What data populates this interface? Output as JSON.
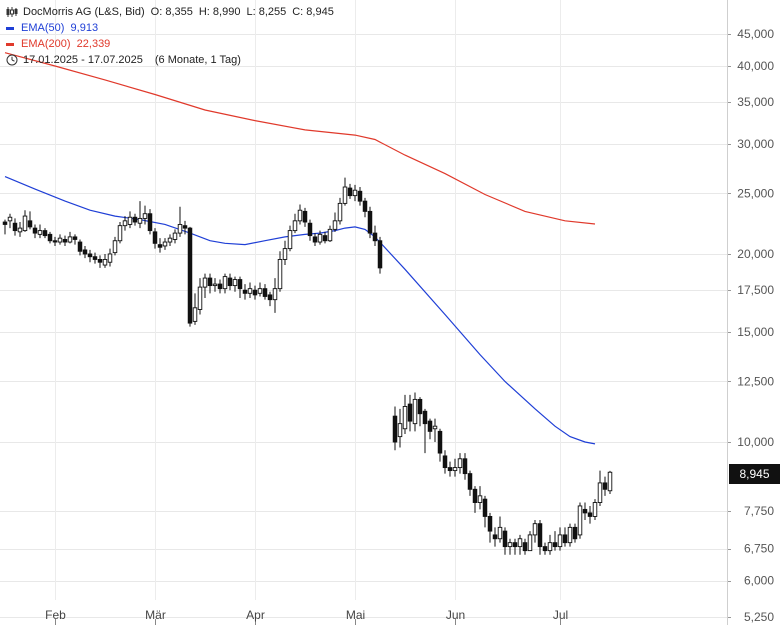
{
  "legend": {
    "instrument": "DocMorris AG (L&S, Bid)",
    "ohlc": {
      "o_label": "O:",
      "o": "8,355",
      "h_label": "H:",
      "h": "8,990",
      "l_label": "L:",
      "l": "8,255",
      "c_label": "C:",
      "c": "8,945"
    },
    "ema50": {
      "label": "EMA(50)",
      "value": "9,913",
      "color": "#1f3fd6"
    },
    "ema200": {
      "label": "EMA(200)",
      "value": "22,339",
      "color": "#e0392b"
    },
    "period": {
      "range": "17.01.2025 - 17.07.2025",
      "detail": "(6 Monate, 1 Tag)"
    }
  },
  "last_price_tag": "8,945",
  "chart_data": {
    "type": "candlestick",
    "y_scale": "log",
    "ylim": [
      5.25,
      47.5
    ],
    "y_ticks": [
      {
        "v": 45,
        "label": "45,000"
      },
      {
        "v": 40,
        "label": "40,000"
      },
      {
        "v": 35,
        "label": "35,000"
      },
      {
        "v": 30,
        "label": "30,000"
      },
      {
        "v": 25,
        "label": "25,000"
      },
      {
        "v": 20,
        "label": "20,000"
      },
      {
        "v": 17.5,
        "label": "17,500"
      },
      {
        "v": 15,
        "label": "15,000"
      },
      {
        "v": 12.5,
        "label": "12,500"
      },
      {
        "v": 10,
        "label": "10,000"
      },
      {
        "v": 7.75,
        "label": "7,750"
      },
      {
        "v": 6.75,
        "label": "6,750"
      },
      {
        "v": 6,
        "label": "6,000"
      },
      {
        "v": 5.25,
        "label": "5,250"
      }
    ],
    "x_ticks": [
      "Feb",
      "Mär",
      "Apr",
      "Mai",
      "Jun",
      "Jul"
    ],
    "grid": true,
    "legend_position": "top-left",
    "ema50": [
      [
        0,
        26.6
      ],
      [
        6,
        25.4
      ],
      [
        12,
        24.3
      ],
      [
        17,
        23.5
      ],
      [
        22,
        23.0
      ],
      [
        27,
        22.7
      ],
      [
        32,
        22.3
      ],
      [
        37,
        21.6
      ],
      [
        41,
        21.0
      ],
      [
        44,
        20.8
      ],
      [
        48,
        20.7
      ],
      [
        52,
        21.0
      ],
      [
        56,
        21.3
      ],
      [
        60,
        21.5
      ],
      [
        63,
        21.6
      ],
      [
        66,
        21.8
      ],
      [
        68,
        22.0
      ],
      [
        70,
        22.1
      ],
      [
        72,
        21.9
      ],
      [
        74,
        21.3
      ],
      [
        80,
        18.9
      ],
      [
        88,
        16.0
      ],
      [
        95,
        13.8
      ],
      [
        100,
        12.5
      ],
      [
        106,
        11.3
      ],
      [
        110,
        10.6
      ],
      [
        113,
        10.2
      ],
      [
        116,
        10.0
      ],
      [
        118,
        9.93
      ]
    ],
    "ema200": [
      [
        0,
        42.0
      ],
      [
        10,
        40.0
      ],
      [
        20,
        38.0
      ],
      [
        30,
        36.0
      ],
      [
        40,
        34.0
      ],
      [
        50,
        32.7
      ],
      [
        60,
        31.6
      ],
      [
        70,
        31.0
      ],
      [
        74,
        30.5
      ],
      [
        80,
        28.8
      ],
      [
        88,
        26.9
      ],
      [
        96,
        24.9
      ],
      [
        104,
        23.4
      ],
      [
        112,
        22.6
      ],
      [
        118,
        22.34
      ]
    ],
    "candles": [
      [
        0,
        22.5,
        22.3,
        22.7,
        21.5
      ],
      [
        1,
        22.6,
        22.9,
        23.2,
        22.0
      ],
      [
        2,
        22.4,
        21.8,
        22.8,
        21.4
      ],
      [
        3,
        21.7,
        22.0,
        22.5,
        21.3
      ],
      [
        4,
        21.8,
        23.0,
        23.5,
        21.7
      ],
      [
        5,
        22.6,
        22.1,
        23.4,
        21.9
      ],
      [
        6,
        22.0,
        21.6,
        22.3,
        21.2
      ],
      [
        7,
        21.5,
        21.8,
        22.3,
        21.2
      ],
      [
        8,
        21.8,
        21.4,
        22.0,
        21.2
      ],
      [
        9,
        21.5,
        21.0,
        21.7,
        20.8
      ],
      [
        10,
        21.0,
        20.9,
        21.3,
        20.6
      ],
      [
        11,
        20.9,
        21.2,
        21.5,
        20.7
      ],
      [
        12,
        21.1,
        20.9,
        21.4,
        20.6
      ],
      [
        13,
        20.9,
        21.3,
        21.7,
        20.8
      ],
      [
        14,
        21.3,
        21.1,
        21.5,
        20.7
      ],
      [
        15,
        20.9,
        20.2,
        21.1,
        19.9
      ],
      [
        16,
        20.3,
        20.0,
        20.6,
        19.7
      ],
      [
        17,
        20.0,
        19.8,
        20.3,
        19.4
      ],
      [
        18,
        19.8,
        19.6,
        20.1,
        19.3
      ],
      [
        19,
        19.6,
        19.4,
        19.9,
        19.0
      ],
      [
        20,
        19.2,
        19.6,
        20.0,
        19.0
      ],
      [
        21,
        19.4,
        20.0,
        20.4,
        19.1
      ],
      [
        22,
        20.1,
        21.0,
        21.3,
        19.9
      ],
      [
        23,
        21.0,
        22.2,
        22.5,
        20.8
      ],
      [
        24,
        22.2,
        22.6,
        23.0,
        21.8
      ],
      [
        25,
        22.3,
        22.9,
        23.4,
        22.0
      ],
      [
        26,
        22.9,
        22.5,
        23.2,
        22.2
      ],
      [
        27,
        22.4,
        22.8,
        24.3,
        22.0
      ],
      [
        28,
        22.8,
        23.2,
        23.9,
        22.3
      ],
      [
        29,
        23.2,
        21.8,
        23.6,
        21.5
      ],
      [
        30,
        21.7,
        20.8,
        22.0,
        20.4
      ],
      [
        31,
        20.7,
        20.5,
        21.2,
        20.1
      ],
      [
        32,
        20.6,
        20.9,
        21.2,
        20.3
      ],
      [
        33,
        20.9,
        21.2,
        21.5,
        20.6
      ],
      [
        34,
        21.1,
        21.6,
        21.9,
        20.8
      ],
      [
        35,
        21.6,
        22.3,
        23.8,
        21.3
      ],
      [
        36,
        22.2,
        22.0,
        22.6,
        21.5
      ],
      [
        37,
        22.0,
        15.5,
        22.1,
        15.3
      ],
      [
        38,
        15.6,
        16.4,
        17.3,
        15.4
      ],
      [
        39,
        16.3,
        17.7,
        18.3,
        16.0
      ],
      [
        40,
        17.7,
        18.3,
        18.6,
        17.0
      ],
      [
        41,
        18.3,
        17.8,
        18.6,
        17.3
      ],
      [
        42,
        17.8,
        17.9,
        18.3,
        17.4
      ],
      [
        43,
        17.9,
        17.6,
        18.2,
        17.3
      ],
      [
        44,
        17.6,
        18.4,
        18.6,
        17.3
      ],
      [
        45,
        18.3,
        17.8,
        18.6,
        17.5
      ],
      [
        46,
        17.8,
        18.2,
        18.4,
        17.4
      ],
      [
        47,
        18.2,
        17.6,
        18.4,
        17.0
      ],
      [
        48,
        17.5,
        17.3,
        17.9,
        16.9
      ],
      [
        49,
        17.3,
        17.6,
        18.0,
        17.0
      ],
      [
        50,
        17.5,
        17.2,
        17.8,
        16.9
      ],
      [
        51,
        17.3,
        17.6,
        18.0,
        17.1
      ],
      [
        52,
        17.6,
        17.1,
        17.9,
        16.9
      ],
      [
        53,
        17.2,
        16.9,
        17.4,
        16.5
      ],
      [
        54,
        16.9,
        17.6,
        18.3,
        16.1
      ],
      [
        55,
        17.6,
        19.6,
        20.2,
        17.4
      ],
      [
        56,
        19.6,
        20.4,
        21.0,
        19.2
      ],
      [
        57,
        20.4,
        21.8,
        22.2,
        20.2
      ],
      [
        58,
        21.8,
        22.6,
        23.2,
        21.6
      ],
      [
        59,
        22.6,
        23.5,
        24.0,
        22.3
      ],
      [
        60,
        23.4,
        22.5,
        23.7,
        22.1
      ],
      [
        61,
        22.4,
        21.4,
        22.7,
        21.0
      ],
      [
        62,
        21.3,
        20.9,
        21.6,
        20.6
      ],
      [
        63,
        20.9,
        21.5,
        21.8,
        20.7
      ],
      [
        64,
        21.4,
        21.0,
        21.7,
        20.8
      ],
      [
        65,
        21.0,
        21.9,
        22.2,
        20.9
      ],
      [
        66,
        21.9,
        22.6,
        23.3,
        21.7
      ],
      [
        67,
        22.6,
        24.1,
        24.6,
        22.3
      ],
      [
        68,
        24.1,
        25.6,
        26.5,
        23.9
      ],
      [
        69,
        25.5,
        24.8,
        25.9,
        24.5
      ],
      [
        70,
        24.8,
        25.3,
        25.8,
        24.3
      ],
      [
        71,
        25.2,
        24.3,
        25.6,
        23.9
      ],
      [
        72,
        24.3,
        23.4,
        24.6,
        22.9
      ],
      [
        73,
        23.4,
        21.6,
        23.8,
        21.2
      ],
      [
        74,
        21.6,
        21.0,
        22.2,
        20.6
      ],
      [
        75,
        21.0,
        19.0,
        21.3,
        18.6
      ],
      [
        78,
        11.0,
        10.0,
        11.4,
        9.7
      ],
      [
        79,
        10.2,
        10.7,
        11.3,
        9.8
      ],
      [
        80,
        10.5,
        11.4,
        11.9,
        10.3
      ],
      [
        81,
        11.5,
        10.8,
        11.9,
        10.4
      ],
      [
        82,
        10.7,
        11.7,
        12.0,
        10.4
      ],
      [
        83,
        11.7,
        11.1,
        11.8,
        10.6
      ],
      [
        84,
        11.2,
        10.7,
        11.3,
        9.6
      ],
      [
        85,
        10.8,
        10.4,
        10.9,
        10.1
      ],
      [
        86,
        10.5,
        10.6,
        10.9,
        10.0
      ],
      [
        87,
        10.4,
        9.6,
        10.5,
        9.3
      ],
      [
        88,
        9.5,
        9.1,
        9.7,
        8.9
      ],
      [
        89,
        9.1,
        9.0,
        9.3,
        8.8
      ],
      [
        90,
        9.0,
        9.1,
        9.4,
        8.8
      ],
      [
        91,
        9.1,
        9.4,
        9.6,
        8.9
      ],
      [
        92,
        9.4,
        8.9,
        9.6,
        8.7
      ],
      [
        93,
        8.9,
        8.4,
        9.0,
        8.2
      ],
      [
        94,
        8.4,
        8.0,
        8.5,
        7.7
      ],
      [
        95,
        8.0,
        8.2,
        8.5,
        7.8
      ],
      [
        96,
        8.1,
        7.6,
        8.2,
        7.3
      ],
      [
        97,
        7.6,
        7.2,
        7.7,
        6.9
      ],
      [
        98,
        7.1,
        7.0,
        7.3,
        6.8
      ],
      [
        99,
        7.0,
        7.3,
        7.6,
        6.9
      ],
      [
        100,
        7.2,
        6.8,
        7.3,
        6.6
      ],
      [
        101,
        6.8,
        6.9,
        7.0,
        6.6
      ],
      [
        102,
        6.9,
        6.8,
        7.0,
        6.6
      ],
      [
        103,
        6.8,
        7.0,
        7.1,
        6.6
      ],
      [
        104,
        6.9,
        6.7,
        7.0,
        6.6
      ],
      [
        105,
        6.7,
        7.1,
        7.2,
        6.7
      ],
      [
        106,
        7.1,
        7.4,
        7.5,
        6.9
      ],
      [
        107,
        7.4,
        6.8,
        7.5,
        6.6
      ],
      [
        108,
        6.8,
        6.7,
        6.9,
        6.6
      ],
      [
        109,
        6.7,
        6.9,
        7.1,
        6.6
      ],
      [
        110,
        6.9,
        6.8,
        7.2,
        6.7
      ],
      [
        111,
        6.8,
        7.1,
        7.3,
        6.7
      ],
      [
        112,
        7.1,
        6.9,
        7.3,
        6.8
      ],
      [
        113,
        6.9,
        7.3,
        7.4,
        6.8
      ],
      [
        114,
        7.3,
        7.0,
        7.4,
        6.9
      ],
      [
        115,
        7.1,
        7.9,
        8.0,
        7.0
      ],
      [
        116,
        7.8,
        7.7,
        8.0,
        7.5
      ],
      [
        117,
        7.7,
        7.6,
        7.9,
        7.4
      ],
      [
        118,
        7.6,
        8.0,
        8.1,
        7.5
      ],
      [
        119,
        8.0,
        8.6,
        9.0,
        7.9
      ],
      [
        120,
        8.6,
        8.4,
        8.8,
        8.2
      ],
      [
        121,
        8.355,
        8.945,
        8.99,
        8.255
      ]
    ]
  }
}
